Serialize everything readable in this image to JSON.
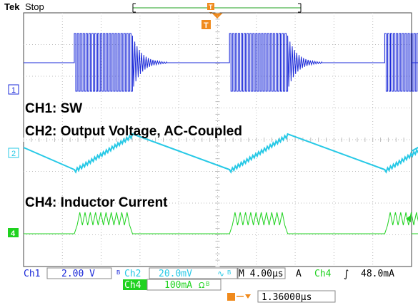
{
  "header": {
    "brand": "Tek",
    "status": "Stop"
  },
  "channels": [
    {
      "id": "1",
      "marker": "1",
      "color": "#1a28d8",
      "annotation": "CH1: SW"
    },
    {
      "id": "2",
      "marker": "2",
      "color": "#27c9e6",
      "annotation": "CH2: Output Voltage, AC-Coupled"
    },
    {
      "id": "4",
      "marker": "4",
      "color": "#1fd21f",
      "annotation": "CH4: Inductor Current"
    }
  ],
  "trigger": {
    "marker": "T"
  },
  "readouts": {
    "ch1_label": "Ch1",
    "ch1_scale": "2.00 V",
    "ch1_bw": "B",
    "ch2_label": "Ch2",
    "ch2_scale": "20.0mV",
    "ch2_coupling": "∿",
    "ch2_bw": "B",
    "timebase": "M 4.00µs",
    "trigger_mode": "A",
    "trig_ch": "Ch4",
    "trig_slope": "∫",
    "trig_level": "48.0mA",
    "ch4_label": "Ch4",
    "ch4_scale": "100mA",
    "ch4_ohm": "Ω",
    "ch4_bw": "B",
    "delay": "1.36000µs"
  },
  "colors": {
    "ch1": "#1a28d8",
    "ch2": "#27c9e6",
    "ch4": "#1fd21f",
    "trigger": "#f08a1c",
    "grid": "#bdbdbd"
  },
  "waveform": {
    "period_us": 16,
    "burst_us": 6.0,
    "ringdown_us": 3.5,
    "ch2_ramp_span_divs": 1.6
  }
}
